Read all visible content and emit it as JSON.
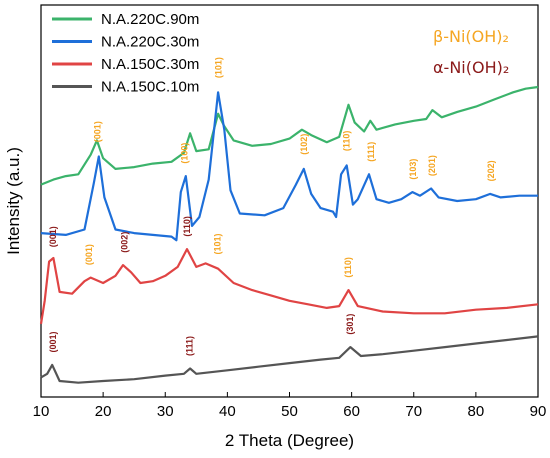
{
  "chart_data": {
    "type": "line",
    "title": "",
    "xlabel": "2 Theta (Degree)",
    "ylabel": "Intensity (a.u.)",
    "xlim": [
      10,
      90
    ],
    "x_ticks": [
      "10",
      "20",
      "30",
      "40",
      "50",
      "60",
      "70",
      "80",
      "90"
    ],
    "y_ticks": "none",
    "grid": false,
    "legend_position": "top-left",
    "phase_legend": [
      {
        "label": "β-Ni(OH)₂",
        "color": "#f5a623"
      },
      {
        "label": "α-Ni(OH)₂",
        "color": "#8b1a1a"
      }
    ],
    "series": [
      {
        "name": "N.A.220C.90m",
        "color": "#3bb36b",
        "points": [
          [
            10,
            0.92
          ],
          [
            12,
            1.2
          ],
          [
            14,
            1.4
          ],
          [
            16,
            1.5
          ],
          [
            18,
            2.6
          ],
          [
            19,
            3.4
          ],
          [
            20,
            2.4
          ],
          [
            22,
            1.8
          ],
          [
            25,
            1.9
          ],
          [
            28,
            2.1
          ],
          [
            31,
            2.2
          ],
          [
            33,
            2.7
          ],
          [
            34,
            3.8
          ],
          [
            35,
            2.8
          ],
          [
            37,
            2.9
          ],
          [
            38.5,
            4.9
          ],
          [
            39.5,
            4.2
          ],
          [
            41,
            3.4
          ],
          [
            44,
            3.1
          ],
          [
            47,
            3.2
          ],
          [
            50,
            3.5
          ],
          [
            52,
            4.0
          ],
          [
            53.5,
            3.7
          ],
          [
            56,
            3.3
          ],
          [
            58,
            3.6
          ],
          [
            59.5,
            5.4
          ],
          [
            60.5,
            4.4
          ],
          [
            62,
            3.9
          ],
          [
            63,
            4.5
          ],
          [
            64,
            4.0
          ],
          [
            67,
            4.3
          ],
          [
            70,
            4.5
          ],
          [
            72,
            4.6
          ],
          [
            73,
            5.1
          ],
          [
            74.5,
            4.7
          ],
          [
            77,
            5.0
          ],
          [
            80,
            5.3
          ],
          [
            83,
            5.7
          ],
          [
            86,
            6.1
          ],
          [
            88,
            6.3
          ],
          [
            90,
            6.4
          ]
        ]
      },
      {
        "name": "N.A.220C.30m",
        "color": "#1e6fd9",
        "points": [
          [
            10,
            -1.8
          ],
          [
            14,
            -1.9
          ],
          [
            17,
            -1.6
          ],
          [
            18.5,
            1.0
          ],
          [
            19.3,
            2.5
          ],
          [
            20.2,
            0.2
          ],
          [
            22,
            -1.6
          ],
          [
            25,
            -1.8
          ],
          [
            28,
            -1.9
          ],
          [
            31,
            -2.0
          ],
          [
            31.8,
            -2.2
          ],
          [
            32.5,
            0.5
          ],
          [
            33.3,
            1.4
          ],
          [
            34.3,
            -1.4
          ],
          [
            35.5,
            -0.9
          ],
          [
            37,
            1.2
          ],
          [
            38.5,
            6.1
          ],
          [
            39.5,
            4.0
          ],
          [
            40.5,
            0.6
          ],
          [
            42,
            -0.7
          ],
          [
            46,
            -0.8
          ],
          [
            49,
            -0.4
          ],
          [
            51,
            0.9
          ],
          [
            52.3,
            1.8
          ],
          [
            53.5,
            0.4
          ],
          [
            55,
            -0.4
          ],
          [
            57,
            -0.6
          ],
          [
            57.5,
            -0.9
          ],
          [
            58.3,
            1.5
          ],
          [
            59.2,
            2.0
          ],
          [
            60.2,
            -0.2
          ],
          [
            61,
            0.1
          ],
          [
            62.8,
            1.5
          ],
          [
            64,
            0.1
          ],
          [
            66,
            -0.1
          ],
          [
            68,
            0.1
          ],
          [
            69.8,
            0.5
          ],
          [
            71,
            0.3
          ],
          [
            72.8,
            0.7
          ],
          [
            74,
            0.2
          ],
          [
            77,
            0.0
          ],
          [
            80,
            0.1
          ],
          [
            82.3,
            0.4
          ],
          [
            84,
            0.2
          ],
          [
            87,
            0.3
          ],
          [
            90,
            0.3
          ]
        ]
      },
      {
        "name": "N.A.150C.30m",
        "color": "#e04444",
        "points": [
          [
            10,
            -6.9
          ],
          [
            10.6,
            -5.6
          ],
          [
            11.3,
            -3.4
          ],
          [
            12,
            -3.2
          ],
          [
            13,
            -5.1
          ],
          [
            15,
            -5.2
          ],
          [
            17,
            -4.5
          ],
          [
            18,
            -4.3
          ],
          [
            20,
            -4.6
          ],
          [
            22,
            -4.2
          ],
          [
            23.2,
            -3.6
          ],
          [
            24.5,
            -4.0
          ],
          [
            26,
            -4.6
          ],
          [
            28,
            -4.5
          ],
          [
            30,
            -4.2
          ],
          [
            32,
            -3.7
          ],
          [
            33.5,
            -2.7
          ],
          [
            35,
            -3.7
          ],
          [
            36.5,
            -3.5
          ],
          [
            38.5,
            -3.8
          ],
          [
            41,
            -4.6
          ],
          [
            44,
            -5.0
          ],
          [
            47,
            -5.3
          ],
          [
            50,
            -5.6
          ],
          [
            53,
            -5.8
          ],
          [
            56,
            -6.0
          ],
          [
            58,
            -5.9
          ],
          [
            59.5,
            -5.0
          ],
          [
            61,
            -5.9
          ],
          [
            65,
            -6.2
          ],
          [
            70,
            -6.3
          ],
          [
            75,
            -6.3
          ],
          [
            80,
            -6.1
          ],
          [
            85,
            -6.0
          ],
          [
            90,
            -5.8
          ]
        ]
      },
      {
        "name": "N.A.150C.10m",
        "color": "#555555",
        "points": [
          [
            10,
            -9.9
          ],
          [
            11,
            -9.7
          ],
          [
            11.8,
            -9.2
          ],
          [
            13,
            -10.1
          ],
          [
            16,
            -10.2
          ],
          [
            20,
            -10.1
          ],
          [
            25,
            -10.0
          ],
          [
            30,
            -9.8
          ],
          [
            33,
            -9.7
          ],
          [
            34,
            -9.4
          ],
          [
            35,
            -9.7
          ],
          [
            40,
            -9.5
          ],
          [
            45,
            -9.3
          ],
          [
            50,
            -9.1
          ],
          [
            55,
            -8.9
          ],
          [
            58,
            -8.8
          ],
          [
            59.8,
            -8.2
          ],
          [
            61.5,
            -8.7
          ],
          [
            65,
            -8.6
          ],
          [
            70,
            -8.4
          ],
          [
            75,
            -8.2
          ],
          [
            80,
            -8.0
          ],
          [
            85,
            -7.8
          ],
          [
            90,
            -7.6
          ]
        ]
      }
    ],
    "annotations": [
      {
        "text": "(001)",
        "x": 19.2,
        "y": 3.3,
        "color": "#f5a623"
      },
      {
        "text": "(100)",
        "x": 33.2,
        "y": 2.1,
        "color": "#f5a623"
      },
      {
        "text": "(101)",
        "x": 38.7,
        "y": 6.9,
        "color": "#f5a623"
      },
      {
        "text": "(102)",
        "x": 52.4,
        "y": 2.6,
        "color": "#f5a623"
      },
      {
        "text": "(110)",
        "x": 59.3,
        "y": 2.8,
        "color": "#f5a623"
      },
      {
        "text": "(111)",
        "x": 63.2,
        "y": 2.2,
        "color": "#f5a623"
      },
      {
        "text": "(103)",
        "x": 70.0,
        "y": 1.2,
        "color": "#f5a623"
      },
      {
        "text": "(201)",
        "x": 73.0,
        "y": 1.4,
        "color": "#f5a623"
      },
      {
        "text": "(202)",
        "x": 82.5,
        "y": 1.1,
        "color": "#f5a623"
      },
      {
        "text": "(001)",
        "x": 12.0,
        "y": -2.6,
        "color": "#8b1a1a"
      },
      {
        "text": "(001)",
        "x": 17.8,
        "y": -3.6,
        "color": "#f5a623"
      },
      {
        "text": "(002)",
        "x": 23.5,
        "y": -2.9,
        "color": "#8b1a1a"
      },
      {
        "text": "(110)",
        "x": 33.6,
        "y": -2.0,
        "color": "#8b1a1a"
      },
      {
        "text": "(101)",
        "x": 38.5,
        "y": -3.0,
        "color": "#f5a623"
      },
      {
        "text": "(110)",
        "x": 59.5,
        "y": -4.3,
        "color": "#f5a623"
      },
      {
        "text": "(001)",
        "x": 12.0,
        "y": -8.5,
        "color": "#8b1a1a"
      },
      {
        "text": "(111)",
        "x": 34.0,
        "y": -8.7,
        "color": "#8b1a1a"
      },
      {
        "text": "(301)",
        "x": 59.8,
        "y": -7.5,
        "color": "#8b1a1a"
      }
    ]
  }
}
